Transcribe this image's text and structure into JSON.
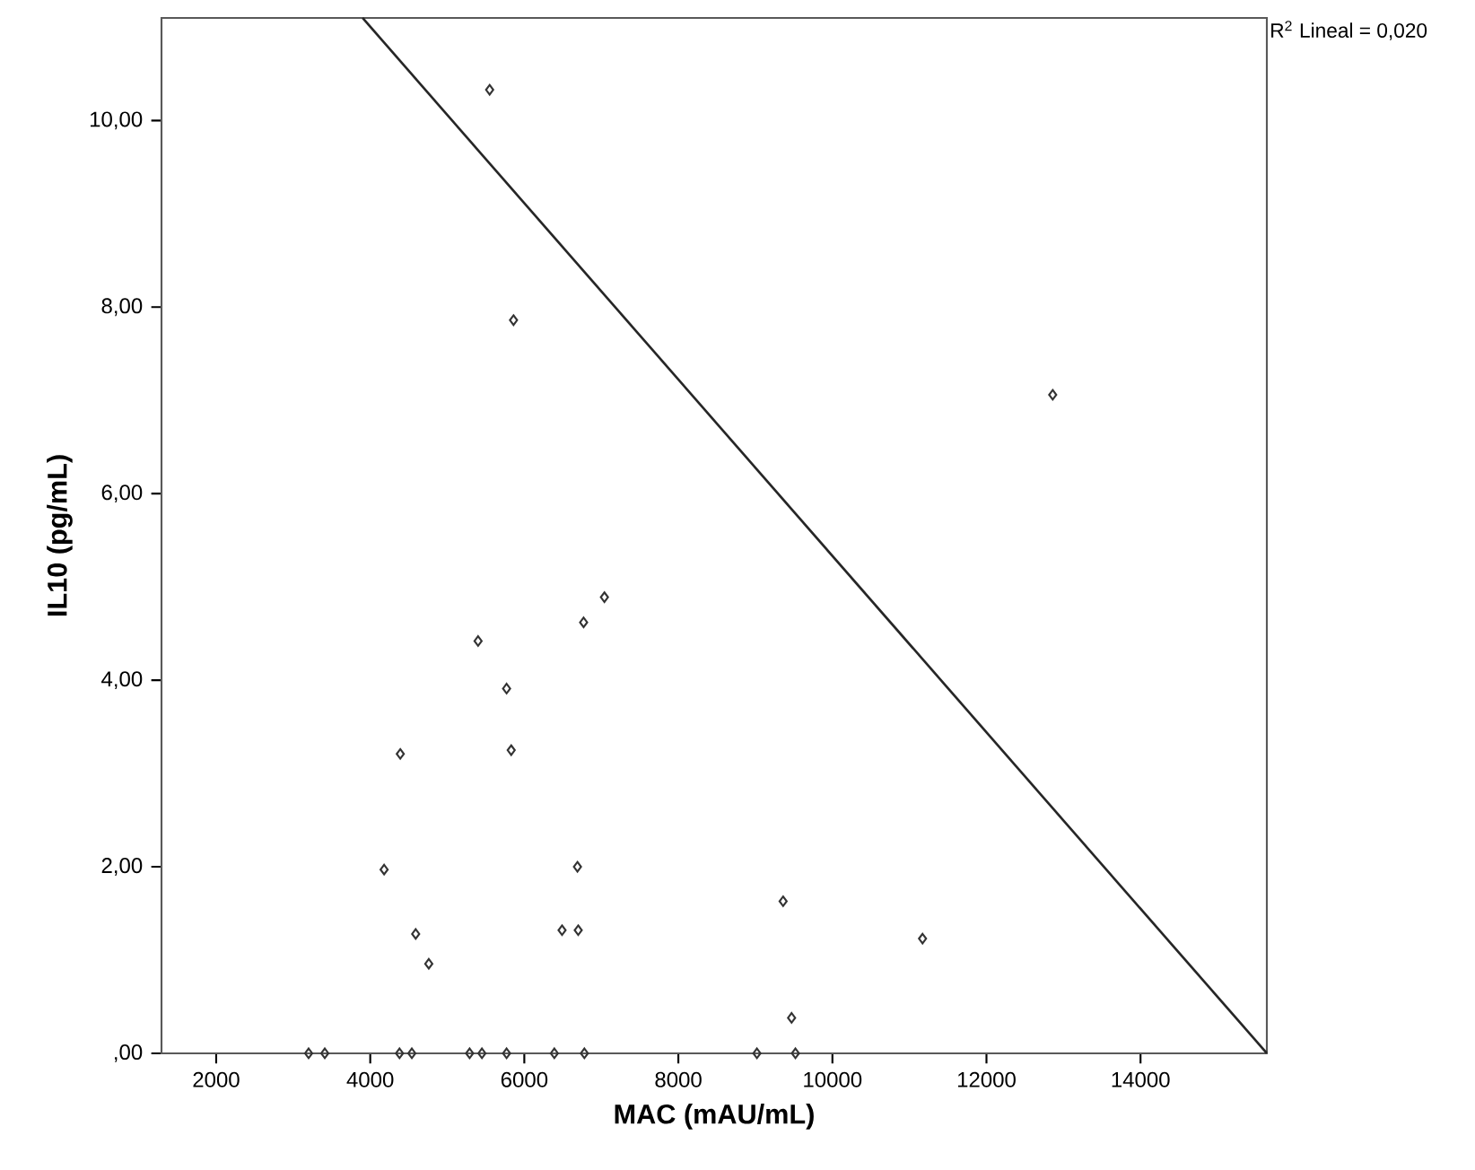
{
  "chart_data": {
    "type": "scatter",
    "xlabel": "MAC (mAU/mL)",
    "ylabel": "IL10 (pg/mL)",
    "annotations": [
      "R$^{2}$ Lineal = 0,020"
    ],
    "xlim": [
      1290,
      15640
    ],
    "ylim": [
      0,
      11.1
    ],
    "xticks": [
      2000,
      4000,
      6000,
      8000,
      10000,
      12000,
      14000
    ],
    "yticks": [
      {
        "value": 0,
        "label": ",00"
      },
      {
        "value": 2,
        "label": "2,00"
      },
      {
        "value": 4,
        "label": "4,00"
      },
      {
        "value": 6,
        "label": "6,00"
      },
      {
        "value": 8,
        "label": "8,00"
      },
      {
        "value": 10,
        "label": "10,00"
      }
    ],
    "grid": false,
    "marker": "diamond",
    "series": [
      {
        "color": "#333333",
        "x": [
          5550,
          5860,
          5400,
          5770,
          5830,
          6770,
          7040,
          4390,
          4180,
          4590,
          4760,
          6690,
          6490,
          6700,
          9360,
          9470,
          12860,
          11170,
          3200,
          3410,
          4380,
          4540,
          5290,
          5450,
          5770,
          6390,
          6780,
          9020,
          9520
        ],
        "values": [
          10.33,
          7.86,
          4.42,
          3.91,
          3.25,
          4.62,
          4.89,
          3.21,
          1.97,
          1.28,
          0.96,
          2.0,
          1.32,
          1.32,
          1.63,
          0.38,
          7.06,
          1.23,
          0,
          0,
          0,
          0,
          0,
          0,
          0,
          0,
          0,
          0,
          0
        ]
      },
      {
        "type": "line",
        "color": "#262626",
        "line_style": "solid",
        "marker": "none",
        "x": [
          3900,
          15640
        ],
        "values": [
          11.1,
          0
        ]
      }
    ]
  }
}
